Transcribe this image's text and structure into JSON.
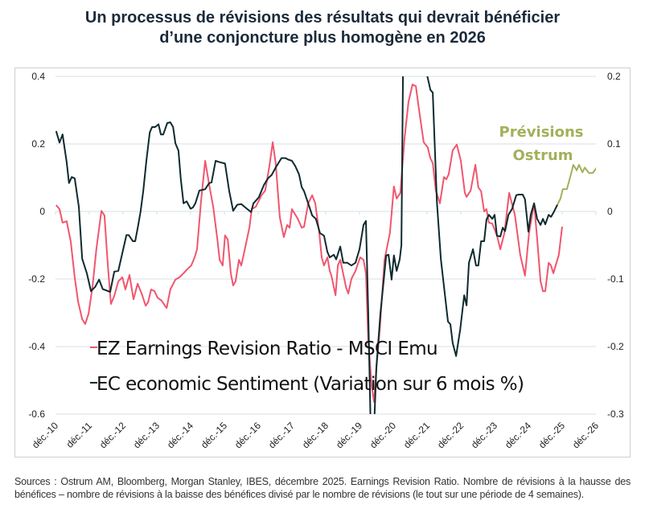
{
  "title_lines": [
    "Un processus de révisions des résultats qui devrait bénéficier",
    "d’une conjoncture plus homogène en 2026"
  ],
  "footnote": "Sources : Ostrum AM, Bloomberg, Morgan Stanley, IBES, décembre 2025. Earnings Revision Ratio. Nombre de révisions à la hausse des bénéfices – nombre de révisions à la baisse des bénéfices divisé par le nombre de révisions (le tout sur une période de 4 semaines).",
  "chart_data": {
    "type": "line",
    "title": "Un processus de révisions des résultats qui devrait bénéficier d’une conjoncture plus homogène en 2026",
    "x_unit": "decimal year",
    "xlim": [
      2010.92,
      2026.92
    ],
    "x_tick_labels": [
      "déc.-10",
      "déc.-11",
      "déc.-12",
      "déc.-13",
      "déc.-14",
      "déc.-15",
      "déc.-16",
      "déc.-17",
      "déc.-18",
      "déc.-19",
      "déc.-20",
      "déc.-21",
      "déc.-22",
      "déc.-23",
      "déc.-24",
      "déc.-25",
      "déc.-26"
    ],
    "y_left": {
      "lim": [
        -0.6,
        0.4
      ],
      "ticks": [
        0.4,
        0.2,
        0,
        -0.2,
        -0.4,
        -0.6
      ],
      "labels": [
        "0.4",
        "0.2",
        "0",
        "-0.2",
        "-0.4",
        "-0.6"
      ]
    },
    "y_right": {
      "lim": [
        -0.3,
        0.2
      ],
      "ticks": [
        0.2,
        0.1,
        0,
        -0.1,
        -0.2,
        -0.3
      ],
      "labels": [
        "0.2",
        "0.1",
        "0",
        "-0.1",
        "-0.2",
        "-0.3"
      ]
    },
    "grid": true,
    "legend_placement": "bottom-left inside",
    "annotation": "Prévisions\nOstrum",
    "annotation_lines": [
      "Prévisions",
      "Ostrum"
    ],
    "colors": {
      "err": "#f0566e",
      "ec": "#0e2a2e",
      "forecast": "#a3b05a"
    },
    "series": [
      {
        "name": "EZ Earnings Revision Ratio - MSCI Emu",
        "axis": "left",
        "x": [
          2010.94,
          2011.04,
          2011.13,
          2011.25,
          2011.37,
          2011.49,
          2011.59,
          2011.71,
          2011.8,
          2011.9,
          2012.02,
          2012.13,
          2012.28,
          2012.37,
          2012.47,
          2012.56,
          2012.66,
          2012.78,
          2012.9,
          2012.99,
          2013.11,
          2013.23,
          2013.35,
          2013.47,
          2013.59,
          2013.66,
          2013.75,
          2013.85,
          2013.94,
          2014.06,
          2014.21,
          2014.32,
          2014.47,
          2014.59,
          2014.71,
          2014.82,
          2014.94,
          2015.04,
          2015.11,
          2015.23,
          2015.35,
          2015.47,
          2015.59,
          2015.71,
          2015.78,
          2015.87,
          2015.94,
          2016.02,
          2016.11,
          2016.18,
          2016.25,
          2016.35,
          2016.42,
          2016.49,
          2016.66,
          2016.73,
          2016.85,
          2017.02,
          2017.13,
          2017.25,
          2017.35,
          2017.44,
          2017.56,
          2017.68,
          2017.78,
          2017.85,
          2017.92,
          2018.09,
          2018.21,
          2018.28,
          2018.4,
          2018.52,
          2018.61,
          2018.73,
          2018.8,
          2018.87,
          2018.97,
          2019.04,
          2019.09,
          2019.21,
          2019.28,
          2019.35,
          2019.52,
          2019.59,
          2019.68,
          2019.8,
          2019.94,
          2020.04,
          2020.11,
          2020.18,
          2020.28,
          2020.35,
          2020.42,
          2020.52,
          2020.66,
          2020.82,
          2020.94,
          2021.02,
          2021.13,
          2021.25,
          2021.37,
          2021.49,
          2021.59,
          2021.66,
          2021.82,
          2021.94,
          2022.02,
          2022.09,
          2022.18,
          2022.3,
          2022.42,
          2022.49,
          2022.56,
          2022.68,
          2022.8,
          2022.92,
          2023.04,
          2023.09,
          2023.21,
          2023.35,
          2023.44,
          2023.52,
          2023.61,
          2023.68,
          2023.75,
          2023.85,
          2023.99,
          2024.09,
          2024.21,
          2024.35,
          2024.52,
          2024.68,
          2024.82,
          2024.94,
          2025.09,
          2025.18,
          2025.28,
          2025.35,
          2025.42,
          2025.52,
          2025.59,
          2025.66,
          2025.75,
          2025.82,
          2025.92
        ],
        "y": [
          0.019,
          0.007,
          -0.033,
          -0.029,
          -0.088,
          -0.195,
          -0.267,
          -0.319,
          -0.333,
          -0.302,
          -0.219,
          -0.112,
          0.002,
          -0.012,
          -0.16,
          -0.274,
          -0.25,
          -0.207,
          -0.195,
          -0.231,
          -0.188,
          -0.26,
          -0.214,
          -0.243,
          -0.279,
          -0.269,
          -0.231,
          -0.236,
          -0.255,
          -0.264,
          -0.286,
          -0.231,
          -0.202,
          -0.195,
          -0.183,
          -0.171,
          -0.16,
          -0.136,
          -0.112,
          0.031,
          0.15,
          0.079,
          0.014,
          -0.081,
          -0.143,
          -0.16,
          -0.071,
          -0.083,
          -0.183,
          -0.219,
          -0.207,
          -0.143,
          -0.16,
          -0.129,
          -0.048,
          0.007,
          0.014,
          0.048,
          0.062,
          0.133,
          0.205,
          0.143,
          -0.017,
          -0.076,
          -0.04,
          -0.048,
          0.007,
          -0.021,
          -0.048,
          -0.045,
          0.024,
          0.048,
          0.024,
          -0.064,
          -0.136,
          -0.16,
          -0.136,
          -0.176,
          -0.19,
          -0.248,
          -0.16,
          -0.143,
          -0.224,
          -0.243,
          -0.2,
          -0.176,
          -0.136,
          -0.143,
          -0.183,
          -0.381,
          -0.517,
          -0.564,
          -0.462,
          -0.35,
          -0.143,
          -0.064,
          0.074,
          0.038,
          0.055,
          0.214,
          0.324,
          0.376,
          0.371,
          0.317,
          0.205,
          0.19,
          0.157,
          0.143,
          0.062,
          0.024,
          0.102,
          0.095,
          0.11,
          0.181,
          0.198,
          0.15,
          0.055,
          0.043,
          0.062,
          0.138,
          0.071,
          0.06,
          0.0,
          0.007,
          -0.033,
          -0.036,
          -0.071,
          -0.112,
          -0.064,
          0.055,
          -0.01,
          -0.129,
          -0.19,
          -0.064,
          0.024,
          -0.081,
          -0.207,
          -0.236,
          -0.236,
          -0.152,
          -0.16,
          -0.183,
          -0.152,
          -0.129,
          -0.045
        ]
      },
      {
        "name": "EC economic Sentiment (Variation sur 6 mois %)",
        "axis": "right",
        "x": [
          2010.94,
          2011.04,
          2011.13,
          2011.25,
          2011.32,
          2011.4,
          2011.49,
          2011.61,
          2011.71,
          2011.85,
          2011.97,
          2012.09,
          2012.21,
          2012.32,
          2012.54,
          2012.66,
          2012.78,
          2013.02,
          2013.09,
          2013.21,
          2013.28,
          2013.37,
          2013.44,
          2013.52,
          2013.61,
          2013.71,
          2013.78,
          2013.87,
          2013.97,
          2014.04,
          2014.11,
          2014.23,
          2014.32,
          2014.4,
          2014.47,
          2014.56,
          2014.63,
          2014.71,
          2014.8,
          2014.92,
          2014.99,
          2015.06,
          2015.18,
          2015.35,
          2015.47,
          2015.54,
          2015.66,
          2015.78,
          2015.94,
          2016.06,
          2016.18,
          2016.3,
          2016.42,
          2016.54,
          2016.71,
          2016.78,
          2016.94,
          2017.09,
          2017.21,
          2017.32,
          2017.44,
          2017.61,
          2017.73,
          2017.8,
          2017.92,
          2018.02,
          2018.13,
          2018.21,
          2018.28,
          2018.4,
          2018.52,
          2018.63,
          2018.75,
          2018.87,
          2018.97,
          2019.04,
          2019.16,
          2019.23,
          2019.35,
          2019.44,
          2019.56,
          2019.68,
          2019.8,
          2019.92,
          2020.04,
          2020.11,
          2020.18,
          2020.25,
          2020.35,
          2020.42,
          2020.54,
          2020.71,
          2020.78,
          2020.87,
          2020.94,
          2021.02,
          2021.11,
          2021.16,
          2021.21,
          2021.5,
          2021.87,
          2021.94,
          2022.02,
          2022.09,
          2022.21,
          2022.33,
          2022.54,
          2022.61,
          2022.68,
          2022.78,
          2022.9,
          2023.02,
          2023.09,
          2023.16,
          2023.28,
          2023.37,
          2023.44,
          2023.52,
          2023.61,
          2023.68,
          2023.75,
          2023.85,
          2023.92,
          2023.99,
          2024.09,
          2024.16,
          2024.23,
          2024.33,
          2024.44,
          2024.56,
          2024.63,
          2024.75,
          2024.82,
          2024.92,
          2024.99,
          2025.09,
          2025.18,
          2025.28,
          2025.35,
          2025.42,
          2025.52,
          2025.59,
          2025.66,
          2025.78
        ],
        "y": [
          0.119,
          0.102,
          0.114,
          0.073,
          0.042,
          0.051,
          0.049,
          0.007,
          -0.07,
          -0.092,
          -0.118,
          -0.112,
          -0.101,
          -0.115,
          -0.119,
          -0.089,
          -0.088,
          -0.035,
          -0.035,
          -0.044,
          -0.044,
          -0.02,
          0.0,
          0.031,
          0.075,
          0.117,
          0.125,
          0.125,
          0.129,
          0.114,
          0.114,
          0.131,
          0.132,
          0.125,
          0.101,
          0.09,
          0.048,
          0.012,
          0.015,
          0.004,
          0.006,
          0.012,
          0.031,
          0.033,
          0.042,
          0.043,
          0.075,
          0.073,
          0.071,
          0.031,
          0.001,
          0.01,
          0.011,
          0.006,
          -0.001,
          0.012,
          0.021,
          0.039,
          0.049,
          0.054,
          0.065,
          0.079,
          0.079,
          0.077,
          0.075,
          0.067,
          0.055,
          0.036,
          0.03,
          0.012,
          -0.006,
          -0.011,
          -0.032,
          -0.036,
          -0.06,
          -0.068,
          -0.064,
          -0.071,
          -0.052,
          -0.076,
          -0.076,
          -0.08,
          -0.076,
          -0.056,
          -0.02,
          -0.014,
          -0.151,
          -0.32,
          -0.32,
          -0.231,
          -0.151,
          -0.065,
          -0.064,
          -0.101,
          -0.065,
          -0.088,
          -0.071,
          -0.05,
          0.22,
          0.4,
          0.21,
          0.198,
          0.18,
          0.176,
          0.015,
          -0.071,
          -0.163,
          -0.167,
          -0.195,
          -0.214,
          -0.175,
          -0.124,
          -0.139,
          -0.076,
          -0.056,
          -0.08,
          -0.08,
          -0.044,
          -0.044,
          -0.012,
          -0.005,
          -0.011,
          -0.005,
          -0.036,
          -0.037,
          -0.024,
          -0.029,
          -0.005,
          0.004,
          0.024,
          0.025,
          0.025,
          0.018,
          -0.03,
          -0.005,
          0.012,
          -0.011,
          -0.02,
          -0.011,
          -0.019,
          -0.005,
          -0.008,
          -0.002,
          0.01
        ]
      },
      {
        "name": "Prévisions Ostrum (EC economic Sentiment)",
        "axis": "right",
        "x": [
          2025.78,
          2025.87,
          2025.94,
          2026.06,
          2026.18,
          2026.25,
          2026.35,
          2026.42,
          2026.52,
          2026.59,
          2026.71,
          2026.83,
          2026.94
        ],
        "y": [
          0.01,
          0.019,
          0.033,
          0.033,
          0.055,
          0.069,
          0.061,
          0.069,
          0.058,
          0.065,
          0.057,
          0.057,
          0.065
        ]
      }
    ]
  }
}
